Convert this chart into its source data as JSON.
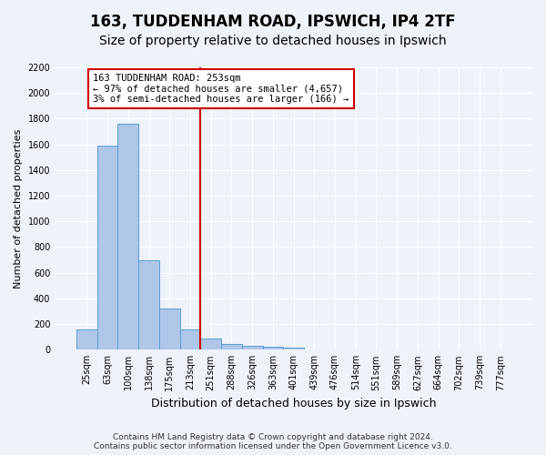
{
  "title1": "163, TUDDENHAM ROAD, IPSWICH, IP4 2TF",
  "title2": "Size of property relative to detached houses in Ipswich",
  "xlabel": "Distribution of detached houses by size in Ipswich",
  "ylabel": "Number of detached properties",
  "bin_labels": [
    "25sqm",
    "63sqm",
    "100sqm",
    "138sqm",
    "175sqm",
    "213sqm",
    "251sqm",
    "288sqm",
    "326sqm",
    "363sqm",
    "401sqm",
    "439sqm",
    "476sqm",
    "514sqm",
    "551sqm",
    "589sqm",
    "627sqm",
    "664sqm",
    "702sqm",
    "739sqm",
    "777sqm"
  ],
  "bar_values": [
    160,
    1590,
    1760,
    700,
    320,
    160,
    90,
    45,
    30,
    20,
    15,
    5,
    2,
    1,
    0,
    0,
    0,
    0,
    0,
    0,
    0
  ],
  "bar_color": "#aec6e8",
  "bar_edge_color": "#5a9fd4",
  "vline_x_index": 6,
  "vline_color": "#cc0000",
  "annotation_text": "163 TUDDENHAM ROAD: 253sqm\n← 97% of detached houses are smaller (4,657)\n3% of semi-detached houses are larger (166) →",
  "annotation_box_edge_color": "#cc0000",
  "ylim": [
    0,
    2200
  ],
  "yticks": [
    0,
    200,
    400,
    600,
    800,
    1000,
    1200,
    1400,
    1600,
    1800,
    2000,
    2200
  ],
  "footer1": "Contains HM Land Registry data © Crown copyright and database right 2024.",
  "footer2": "Contains public sector information licensed under the Open Government Licence v3.0.",
  "bg_color": "#eef2f9",
  "plot_bg_color": "#eef2f9",
  "title1_fontsize": 12,
  "title2_fontsize": 10,
  "ylabel_fontsize": 8,
  "xlabel_fontsize": 9,
  "tick_fontsize": 7,
  "footer_fontsize": 6.5,
  "annotation_fontsize": 7.5
}
